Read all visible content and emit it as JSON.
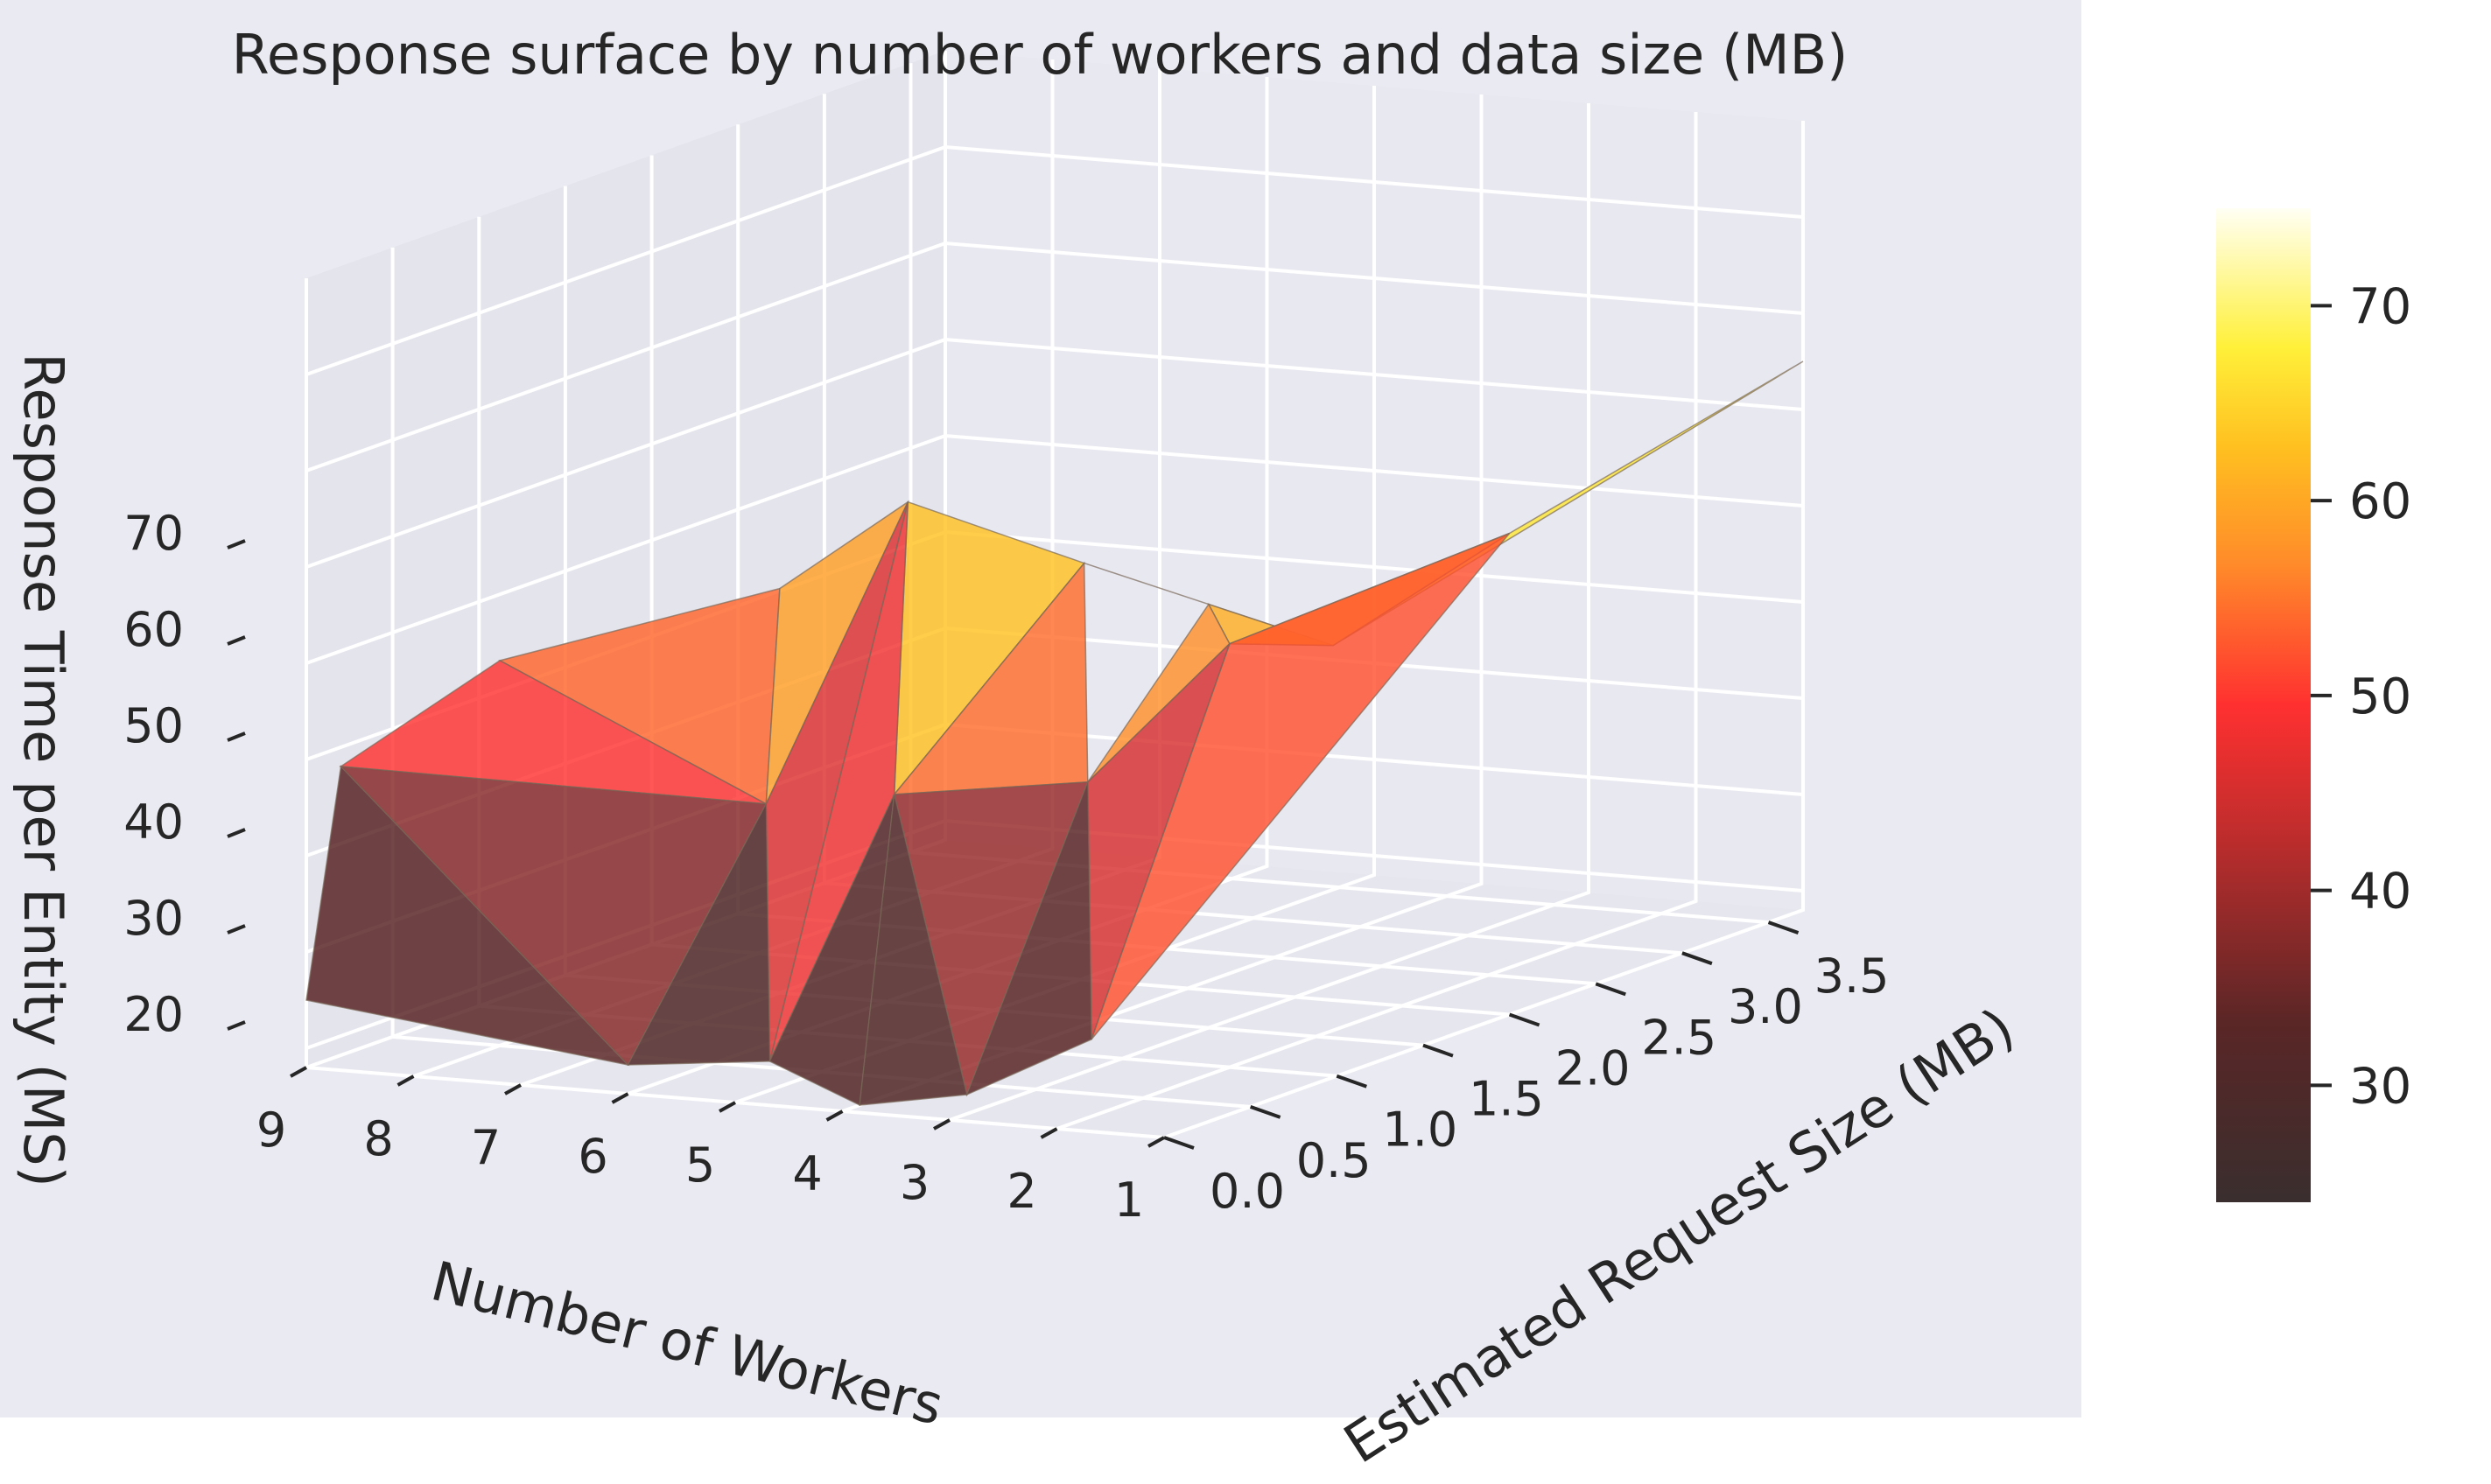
{
  "chart_data": {
    "type": "surface3d",
    "title": "Response surface by number of workers and data size (MB)",
    "xlabel": "Number of Workers",
    "ylabel": "Estimated Request Size (MB)",
    "zlabel": "Response Time per Entity (MS)",
    "x_ticks": [
      "1",
      "2",
      "3",
      "4",
      "5",
      "6",
      "7",
      "8",
      "9"
    ],
    "y_ticks": [
      "0.0",
      "0.5",
      "1.0",
      "1.5",
      "2.0",
      "2.5",
      "3.0",
      "3.5"
    ],
    "z_ticks": [
      "20",
      "30",
      "40",
      "50",
      "60",
      "70"
    ],
    "colorbar_ticks": [
      "30",
      "40",
      "50",
      "60",
      "70"
    ],
    "colormap": "hot",
    "colorbar_range": [
      24,
      75
    ],
    "xlim": [
      1,
      9
    ],
    "ylim": [
      0,
      3.7
    ],
    "zlim": [
      18,
      80
    ],
    "grid": true,
    "points": [
      {
        "x": 9,
        "y": 0.0,
        "z": 25
      },
      {
        "x": 9,
        "y": 0.2,
        "z": 48
      },
      {
        "x": 8,
        "y": 0.5,
        "z": 58
      },
      {
        "x": 6,
        "y": 0.0,
        "z": 21
      },
      {
        "x": 6,
        "y": 0.8,
        "z": 43
      },
      {
        "x": 7,
        "y": 1.5,
        "z": 60
      },
      {
        "x": 5,
        "y": 0.2,
        "z": 21
      },
      {
        "x": 5,
        "y": 1.0,
        "z": 74
      },
      {
        "x": 4,
        "y": 0.1,
        "z": 18
      },
      {
        "x": 4,
        "y": 0.3,
        "z": 49
      },
      {
        "x": 4,
        "y": 1.4,
        "z": 66
      },
      {
        "x": 3,
        "y": 0.1,
        "z": 20
      },
      {
        "x": 3,
        "y": 0.8,
        "z": 48
      },
      {
        "x": 3,
        "y": 1.5,
        "z": 62
      },
      {
        "x": 2,
        "y": 0.2,
        "z": 26
      },
      {
        "x": 2,
        "y": 1.0,
        "z": 62
      },
      {
        "x": 2,
        "y": 1.6,
        "z": 58
      },
      {
        "x": 1,
        "y": 2.0,
        "z": 68
      },
      {
        "x": 1,
        "y": 3.7,
        "z": 75
      }
    ]
  }
}
